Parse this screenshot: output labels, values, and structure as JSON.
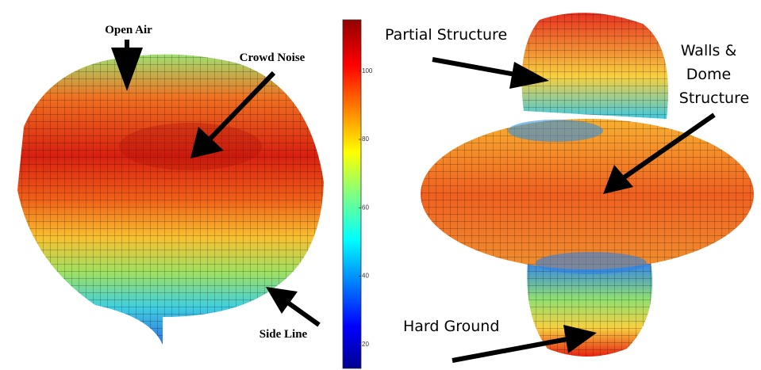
{
  "left_panel": {
    "annotations": [
      "Open Air",
      "Crowd Noise",
      "Side Line"
    ]
  },
  "colorbar": {
    "lim": [
      13,
      115
    ],
    "ticks": [
      20,
      40,
      60,
      80,
      100
    ]
  },
  "right_panel": {
    "annotations": [
      "Partial Structure",
      [
        "Walls &",
        "Dome",
        "Structure"
      ],
      "Hard Ground"
    ]
  }
}
